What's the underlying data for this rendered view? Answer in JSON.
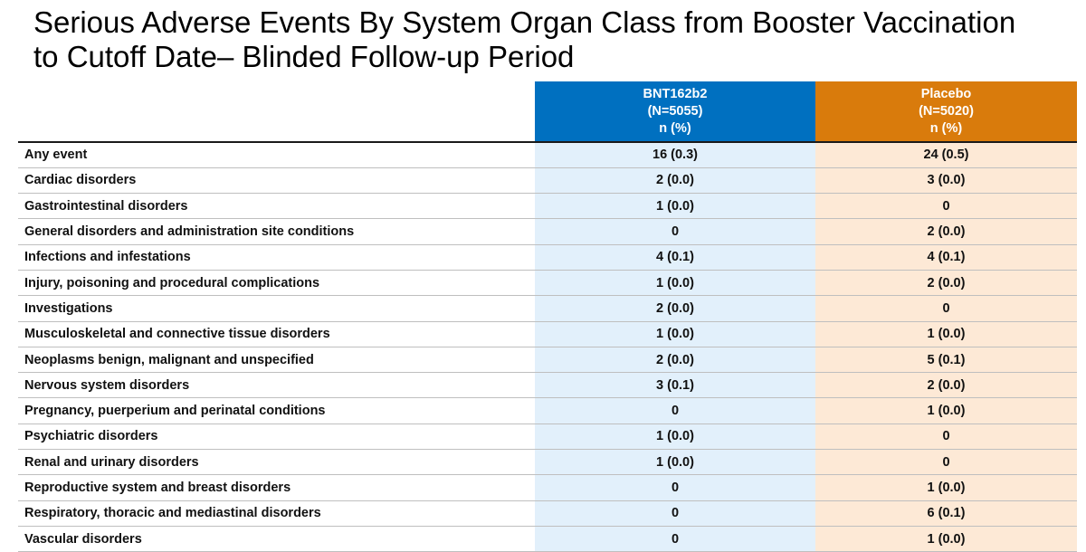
{
  "title": "Serious Adverse Events By System Organ Class from Booster Vaccination\nto Cutoff Date– Blinded Follow-up Period",
  "columns": {
    "bnt": {
      "name": "BNT162b2",
      "n": "(N=5055)",
      "unit": "n (%)",
      "color": "#0070c0"
    },
    "placebo": {
      "name": "Placebo",
      "n": "(N=5020)",
      "unit": "n (%)",
      "color": "#d97b0c"
    }
  },
  "rows": [
    {
      "label": "Any event",
      "bnt": "16 (0.3)",
      "placebo": "24 (0.5)"
    },
    {
      "label": "Cardiac disorders",
      "bnt": "2 (0.0)",
      "placebo": "3 (0.0)"
    },
    {
      "label": "Gastrointestinal disorders",
      "bnt": "1 (0.0)",
      "placebo": "0"
    },
    {
      "label": "General disorders and administration site conditions",
      "bnt": "0",
      "placebo": "2 (0.0)"
    },
    {
      "label": "Infections and infestations",
      "bnt": "4 (0.1)",
      "placebo": "4 (0.1)"
    },
    {
      "label": "Injury, poisoning and procedural complications",
      "bnt": "1 (0.0)",
      "placebo": "2 (0.0)"
    },
    {
      "label": "Investigations",
      "bnt": "2 (0.0)",
      "placebo": "0"
    },
    {
      "label": "Musculoskeletal and connective tissue disorders",
      "bnt": "1 (0.0)",
      "placebo": "1 (0.0)"
    },
    {
      "label": "Neoplasms benign, malignant and unspecified",
      "bnt": "2 (0.0)",
      "placebo": "5 (0.1)"
    },
    {
      "label": "Nervous system disorders",
      "bnt": "3 (0.1)",
      "placebo": "2 (0.0)"
    },
    {
      "label": "Pregnancy, puerperium and perinatal conditions",
      "bnt": "0",
      "placebo": "1 (0.0)"
    },
    {
      "label": "Psychiatric disorders",
      "bnt": "1 (0.0)",
      "placebo": "0"
    },
    {
      "label": "Renal and urinary disorders",
      "bnt": "1 (0.0)",
      "placebo": "0"
    },
    {
      "label": "Reproductive system and breast disorders",
      "bnt": "0",
      "placebo": "1 (0.0)"
    },
    {
      "label": "Respiratory, thoracic and mediastinal disorders",
      "bnt": "0",
      "placebo": "6 (0.1)"
    },
    {
      "label": "Vascular disorders",
      "bnt": "0",
      "placebo": "1 (0.0)"
    }
  ]
}
